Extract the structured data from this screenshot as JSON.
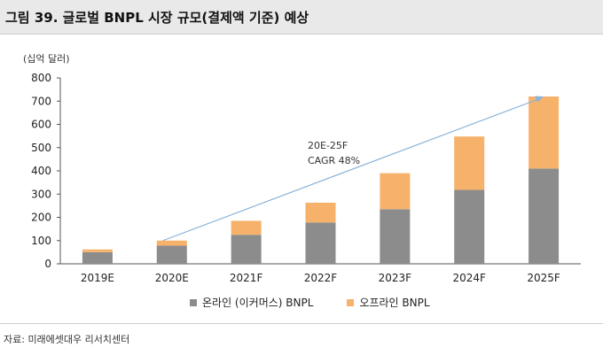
{
  "header": {
    "title": "그림 39. 글로벌 BNPL 시장 규모(결제액 기준) 예상"
  },
  "unit_label": "(십억 달러)",
  "source": "자료: 미래에셋대우 리서치센터",
  "annotation": {
    "line1": "20E-25F",
    "line2": "CAGR 48%"
  },
  "colors": {
    "online": "#8c8c8c",
    "offline": "#f6b26b",
    "trend": "#8ab4d8"
  },
  "chart_data": {
    "type": "bar",
    "stacked": true,
    "categories": [
      "2019E",
      "2020E",
      "2021F",
      "2022F",
      "2023F",
      "2024F",
      "2025F"
    ],
    "series": [
      {
        "name": "온라인 (이커머스) BNPL",
        "values": [
          50,
          78,
          125,
          178,
          235,
          318,
          410
        ]
      },
      {
        "name": "오프라인 BNPL",
        "values": [
          12,
          22,
          60,
          85,
          155,
          230,
          310
        ]
      }
    ],
    "yticks": [
      0,
      100,
      200,
      300,
      400,
      500,
      600,
      700,
      800
    ],
    "ylim": [
      0,
      800
    ],
    "xlabel": "",
    "ylabel": "",
    "grid": false,
    "legend": "bottom",
    "trend_arrow": {
      "from_category": "2020E",
      "from_value": 100,
      "to_category": "2025F",
      "to_value": 720
    }
  }
}
